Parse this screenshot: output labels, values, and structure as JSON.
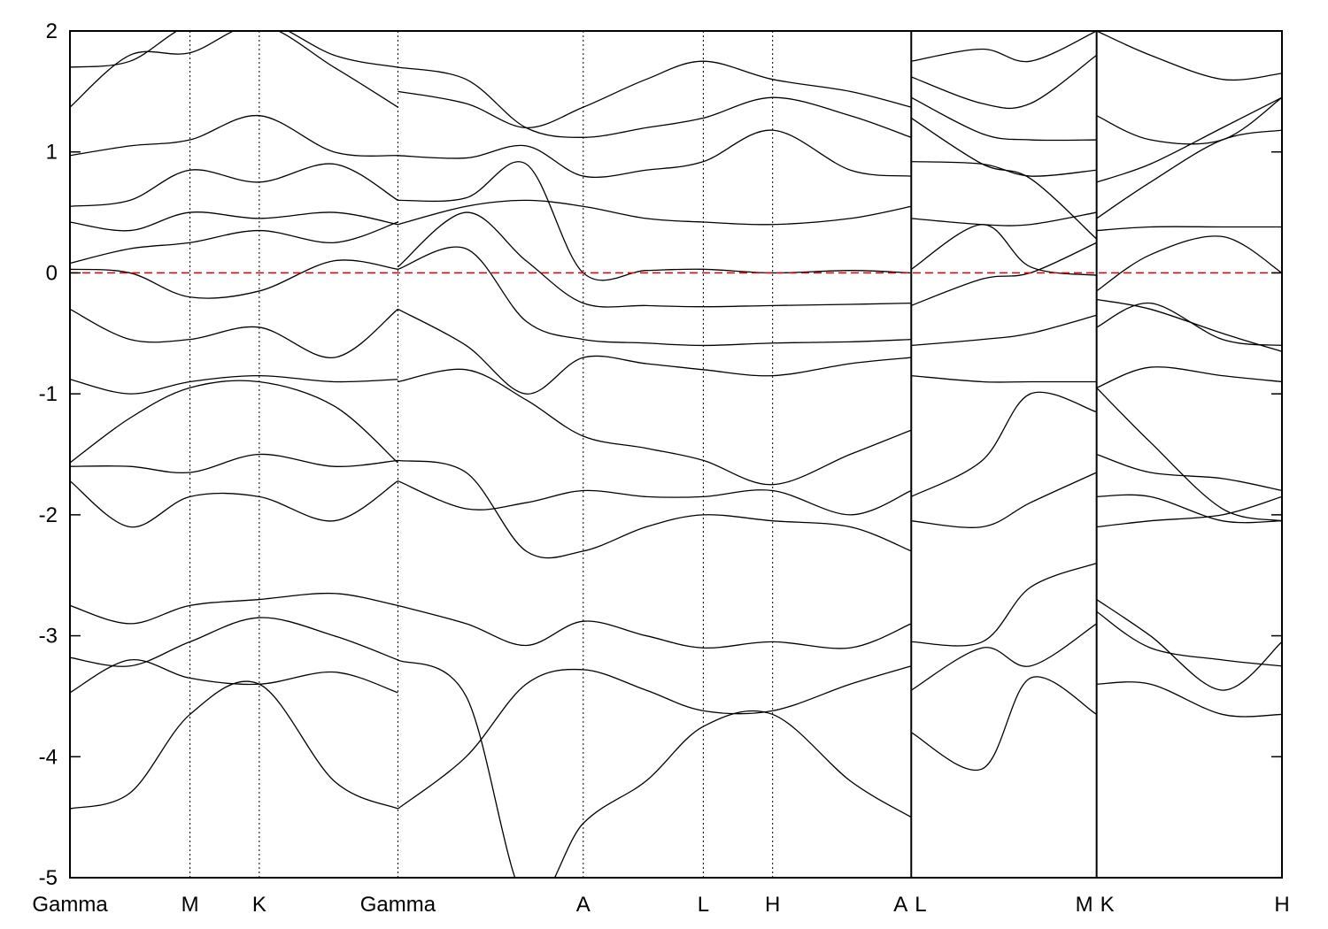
{
  "chart_data": {
    "type": "line",
    "title": "",
    "xlabel": "",
    "ylabel": "",
    "ylim": [
      -5,
      2
    ],
    "yticks": [
      "2",
      "1",
      "0",
      "-1",
      "-2",
      "-3",
      "-4",
      "-5"
    ],
    "fermi_level": {
      "value": 0,
      "color": "#e00000",
      "style": "dashed"
    },
    "grid": false,
    "kpath": [
      {
        "label": "Gamma",
        "x": 0.0
      },
      {
        "label": "M",
        "x": 1.0
      },
      {
        "label": "K",
        "x": 1.577
      },
      {
        "label": "Gamma",
        "x": 2.732
      },
      {
        "label": "A",
        "x": 4.276
      },
      {
        "label": "L",
        "x": 5.276
      },
      {
        "label": "H",
        "x": 5.853
      },
      {
        "label": "A",
        "x": 7.008
      },
      {
        "label": "L",
        "x": 7.008
      },
      {
        "label": "M",
        "x": 8.552
      },
      {
        "label": "K",
        "x": 8.552
      },
      {
        "label": "H",
        "x": 10.096
      }
    ],
    "xmax": 10.096,
    "discontinuities": [
      7.008,
      8.552
    ],
    "series": [
      {
        "x": [
          0,
          0.5,
          1.0,
          1.577,
          2.2,
          2.732
        ],
        "y": [
          -4.43,
          -4.3,
          -3.65,
          -3.4,
          -4.2,
          -4.43
        ]
      },
      {
        "x": [
          0,
          0.5,
          1.0,
          1.577,
          2.2,
          2.732
        ],
        "y": [
          -3.47,
          -3.2,
          -3.35,
          -3.4,
          -3.3,
          -3.47
        ]
      },
      {
        "x": [
          0,
          0.5,
          1.0,
          1.577,
          2.2,
          2.732
        ],
        "y": [
          -3.18,
          -3.25,
          -3.05,
          -2.85,
          -3.0,
          -3.2
        ]
      },
      {
        "x": [
          0,
          0.5,
          1.0,
          1.577,
          2.2,
          2.732
        ],
        "y": [
          -2.75,
          -2.9,
          -2.75,
          -2.7,
          -2.65,
          -2.75
        ]
      },
      {
        "x": [
          0,
          0.5,
          1.0,
          1.577,
          2.2,
          2.732
        ],
        "y": [
          -1.72,
          -2.1,
          -1.85,
          -1.85,
          -2.05,
          -1.72
        ]
      },
      {
        "x": [
          0,
          0.5,
          1.0,
          1.577,
          2.2,
          2.732
        ],
        "y": [
          -1.6,
          -1.6,
          -1.65,
          -1.5,
          -1.6,
          -1.55
        ]
      },
      {
        "x": [
          0,
          0.5,
          1.0,
          1.577,
          2.2,
          2.732
        ],
        "y": [
          -1.57,
          -1.2,
          -0.95,
          -0.9,
          -1.1,
          -1.57
        ]
      },
      {
        "x": [
          0,
          0.5,
          1.0,
          1.577,
          2.2,
          2.732
        ],
        "y": [
          -0.88,
          -1.0,
          -0.9,
          -0.85,
          -0.9,
          -0.88
        ]
      },
      {
        "x": [
          0,
          0.5,
          1.0,
          1.577,
          2.2,
          2.732
        ],
        "y": [
          -0.3,
          -0.55,
          -0.55,
          -0.45,
          -0.7,
          -0.3
        ]
      },
      {
        "x": [
          0,
          0.5,
          1.0,
          1.577,
          2.2,
          2.732
        ],
        "y": [
          0.03,
          0.0,
          -0.2,
          -0.15,
          0.1,
          0.03
        ]
      },
      {
        "x": [
          0,
          0.5,
          1.0,
          1.577,
          2.2,
          2.732
        ],
        "y": [
          0.08,
          0.2,
          0.25,
          0.35,
          0.25,
          0.42
        ]
      },
      {
        "x": [
          0,
          0.5,
          1.0,
          1.577,
          2.2,
          2.732
        ],
        "y": [
          0.42,
          0.35,
          0.5,
          0.45,
          0.5,
          0.4
        ]
      },
      {
        "x": [
          0,
          0.5,
          1.0,
          1.577,
          2.2,
          2.732
        ],
        "y": [
          0.55,
          0.6,
          0.85,
          0.75,
          0.9,
          0.6
        ]
      },
      {
        "x": [
          0,
          0.5,
          1.0,
          1.577,
          2.2,
          2.732
        ],
        "y": [
          0.97,
          1.05,
          1.1,
          1.3,
          1.0,
          0.97
        ]
      },
      {
        "x": [
          0,
          0.5,
          1.0,
          1.577,
          2.2,
          2.732
        ],
        "y": [
          1.37,
          1.8,
          1.82,
          2.05,
          1.7,
          1.37
        ]
      },
      {
        "x": [
          0,
          0.5,
          1.0,
          1.577,
          2.2,
          2.732
        ],
        "y": [
          1.7,
          1.75,
          2.05,
          2.1,
          1.8,
          1.7
        ]
      },
      {
        "x": [
          2.732,
          3.3,
          3.8,
          4.276,
          4.8,
          5.276,
          5.853,
          6.5,
          7.008
        ],
        "y": [
          -4.43,
          -4.0,
          -3.4,
          -3.28,
          -3.45,
          -3.62,
          -3.62,
          -3.4,
          -3.25
        ]
      },
      {
        "x": [
          2.732,
          3.3,
          3.8,
          4.276,
          4.8,
          5.276,
          5.853,
          6.5,
          7.008
        ],
        "y": [
          -3.2,
          -3.5,
          -5.2,
          -4.55,
          -4.2,
          -3.75,
          -3.65,
          -4.2,
          -4.5
        ]
      },
      {
        "x": [
          2.732,
          3.3,
          3.8,
          4.276,
          4.8,
          5.276,
          5.853,
          6.5,
          7.008
        ],
        "y": [
          -2.75,
          -2.9,
          -3.08,
          -2.88,
          -3.0,
          -3.1,
          -3.05,
          -3.1,
          -2.9
        ]
      },
      {
        "x": [
          2.732,
          3.3,
          3.8,
          4.276,
          4.8,
          5.276,
          5.853,
          6.5,
          7.008
        ],
        "y": [
          -1.72,
          -1.95,
          -1.9,
          -1.8,
          -1.85,
          -1.85,
          -1.8,
          -2.0,
          -1.8
        ]
      },
      {
        "x": [
          2.732,
          3.3,
          3.8,
          4.276,
          4.8,
          5.276,
          5.853,
          6.5,
          7.008
        ],
        "y": [
          -1.55,
          -1.65,
          -2.3,
          -2.3,
          -2.1,
          -2.0,
          -2.05,
          -2.1,
          -2.3
        ]
      },
      {
        "x": [
          2.732,
          3.3,
          3.8,
          4.276,
          4.8,
          5.276,
          5.853,
          6.5,
          7.008
        ],
        "y": [
          -0.9,
          -0.8,
          -1.05,
          -1.35,
          -1.45,
          -1.55,
          -1.75,
          -1.5,
          -1.3
        ]
      },
      {
        "x": [
          2.732,
          3.3,
          3.8,
          4.276,
          4.8,
          5.276,
          5.853,
          6.5,
          7.008
        ],
        "y": [
          -0.3,
          -0.6,
          -1.0,
          -0.7,
          -0.75,
          -0.8,
          -0.85,
          -0.75,
          -0.7
        ]
      },
      {
        "x": [
          2.732,
          3.3,
          3.8,
          4.276,
          4.8,
          5.276,
          5.853,
          6.5,
          7.008
        ],
        "y": [
          0.03,
          0.2,
          -0.4,
          -0.55,
          -0.58,
          -0.6,
          -0.58,
          -0.57,
          -0.55
        ]
      },
      {
        "x": [
          2.732,
          3.3,
          3.8,
          4.276,
          4.8,
          5.276,
          5.853,
          6.5,
          7.008
        ],
        "y": [
          0.05,
          0.5,
          0.1,
          -0.25,
          -0.27,
          -0.28,
          -0.27,
          -0.26,
          -0.25
        ]
      },
      {
        "x": [
          2.732,
          3.3,
          3.8,
          4.276,
          4.8,
          5.276,
          5.853,
          6.5,
          7.008
        ],
        "y": [
          0.4,
          0.55,
          0.6,
          0.55,
          0.45,
          0.42,
          0.4,
          0.45,
          0.55
        ]
      },
      {
        "x": [
          2.732,
          3.3,
          3.8,
          4.276,
          4.8,
          5.276,
          5.853,
          6.5,
          7.008
        ],
        "y": [
          0.6,
          0.62,
          0.9,
          0.0,
          0.02,
          0.03,
          0.0,
          0.02,
          0.0
        ]
      },
      {
        "x": [
          2.732,
          3.3,
          3.8,
          4.276,
          4.8,
          5.276,
          5.853,
          6.5,
          7.008
        ],
        "y": [
          0.97,
          0.95,
          1.05,
          0.8,
          0.85,
          0.92,
          1.18,
          0.85,
          0.8
        ]
      },
      {
        "x": [
          2.732,
          3.3,
          3.8,
          4.276,
          4.8,
          5.276,
          5.853,
          6.5,
          7.008
        ],
        "y": [
          1.5,
          1.4,
          1.2,
          1.37,
          1.6,
          1.75,
          1.6,
          1.5,
          1.37
        ]
      },
      {
        "x": [
          2.732,
          3.3,
          3.8,
          4.276,
          4.8,
          5.276,
          5.853,
          6.5,
          7.008
        ],
        "y": [
          1.7,
          1.6,
          1.2,
          1.12,
          1.2,
          1.28,
          1.45,
          1.3,
          1.12
        ]
      },
      {
        "x": [
          7.008,
          7.6,
          8.0,
          8.552
        ],
        "y": [
          -3.8,
          -4.1,
          -3.35,
          -3.65
        ]
      },
      {
        "x": [
          7.008,
          7.6,
          8.0,
          8.552
        ],
        "y": [
          -3.45,
          -3.1,
          -3.25,
          -2.9
        ]
      },
      {
        "x": [
          7.008,
          7.6,
          8.0,
          8.552
        ],
        "y": [
          -3.05,
          -3.05,
          -2.6,
          -2.4
        ]
      },
      {
        "x": [
          7.008,
          7.6,
          8.0,
          8.552
        ],
        "y": [
          -2.05,
          -2.1,
          -1.9,
          -1.65
        ]
      },
      {
        "x": [
          7.008,
          7.6,
          8.0,
          8.552
        ],
        "y": [
          -1.85,
          -1.55,
          -1.0,
          -1.15
        ]
      },
      {
        "x": [
          7.008,
          7.6,
          8.0,
          8.552
        ],
        "y": [
          -0.85,
          -0.9,
          -0.9,
          -0.9
        ]
      },
      {
        "x": [
          7.008,
          7.6,
          8.0,
          8.552
        ],
        "y": [
          -0.6,
          -0.55,
          -0.5,
          -0.35
        ]
      },
      {
        "x": [
          7.008,
          7.6,
          8.0,
          8.552
        ],
        "y": [
          -0.27,
          -0.05,
          0.0,
          0.25
        ]
      },
      {
        "x": [
          7.008,
          7.6,
          8.0,
          8.552
        ],
        "y": [
          0.03,
          0.4,
          0.05,
          -0.02
        ]
      },
      {
        "x": [
          7.008,
          7.6,
          8.0,
          8.552
        ],
        "y": [
          0.45,
          0.4,
          0.4,
          0.5
        ]
      },
      {
        "x": [
          7.008,
          7.6,
          8.0,
          8.552
        ],
        "y": [
          0.92,
          0.9,
          0.8,
          0.85
        ]
      },
      {
        "x": [
          7.008,
          7.6,
          8.0,
          8.552
        ],
        "y": [
          1.28,
          0.9,
          0.78,
          0.28
        ]
      },
      {
        "x": [
          7.008,
          7.6,
          8.0,
          8.552
        ],
        "y": [
          1.45,
          1.15,
          1.1,
          1.1
        ]
      },
      {
        "x": [
          7.008,
          7.6,
          8.0,
          8.552
        ],
        "y": [
          1.62,
          1.4,
          1.4,
          1.8
        ]
      },
      {
        "x": [
          7.008,
          7.6,
          8.0,
          8.552
        ],
        "y": [
          1.75,
          1.85,
          1.75,
          2.0
        ]
      },
      {
        "x": [
          8.552,
          9.0,
          9.6,
          10.096
        ],
        "y": [
          -3.4,
          -3.4,
          -3.65,
          -3.65
        ]
      },
      {
        "x": [
          8.552,
          9.0,
          9.6,
          10.096
        ],
        "y": [
          -2.8,
          -3.1,
          -3.2,
          -3.25
        ]
      },
      {
        "x": [
          8.552,
          9.0,
          9.6,
          10.096
        ],
        "y": [
          -2.7,
          -3.0,
          -3.45,
          -3.05
        ]
      },
      {
        "x": [
          8.552,
          9.0,
          9.6,
          10.096
        ],
        "y": [
          -2.1,
          -2.05,
          -2.0,
          -1.85
        ]
      },
      {
        "x": [
          8.552,
          9.0,
          9.6,
          10.096
        ],
        "y": [
          -1.85,
          -1.85,
          -2.05,
          -2.05
        ]
      },
      {
        "x": [
          8.552,
          9.0,
          9.6,
          10.096
        ],
        "y": [
          -1.5,
          -1.65,
          -1.7,
          -1.8
        ]
      },
      {
        "x": [
          8.552,
          9.0,
          9.6,
          10.096
        ],
        "y": [
          -0.95,
          -1.4,
          -1.95,
          -2.05
        ]
      },
      {
        "x": [
          8.552,
          9.0,
          9.6,
          10.096
        ],
        "y": [
          -0.95,
          -0.78,
          -0.85,
          -0.9
        ]
      },
      {
        "x": [
          8.552,
          9.0,
          9.6,
          10.096
        ],
        "y": [
          -0.45,
          -0.25,
          -0.55,
          -0.6
        ]
      },
      {
        "x": [
          8.552,
          9.0,
          9.6,
          10.096
        ],
        "y": [
          -0.22,
          -0.3,
          -0.5,
          -0.65
        ]
      },
      {
        "x": [
          8.552,
          9.0,
          9.6,
          10.096
        ],
        "y": [
          -0.15,
          0.15,
          0.3,
          0.0
        ]
      },
      {
        "x": [
          8.552,
          9.0,
          9.6,
          10.096
        ],
        "y": [
          0.35,
          0.38,
          0.38,
          0.38
        ]
      },
      {
        "x": [
          8.552,
          9.0,
          9.6,
          10.096
        ],
        "y": [
          0.45,
          0.75,
          1.1,
          1.18
        ]
      },
      {
        "x": [
          8.552,
          9.0,
          9.6,
          10.096
        ],
        "y": [
          0.75,
          0.9,
          1.2,
          1.45
        ]
      },
      {
        "x": [
          8.552,
          9.0,
          9.6,
          10.096
        ],
        "y": [
          1.3,
          1.1,
          1.1,
          1.45
        ]
      },
      {
        "x": [
          8.552,
          9.0,
          9.6,
          10.096
        ],
        "y": [
          2.0,
          1.8,
          1.6,
          1.65
        ]
      }
    ]
  }
}
